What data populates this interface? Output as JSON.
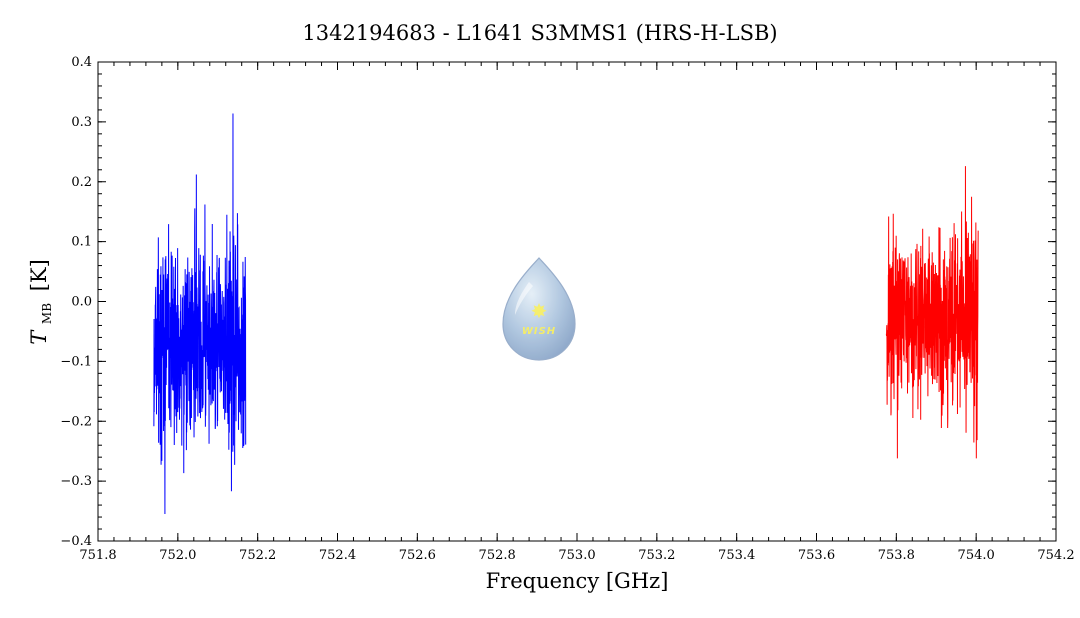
{
  "chart_data": {
    "type": "line",
    "title": "1342194683 - L1641 S3MMS1 (HRS-H-LSB)",
    "xlabel": "Frequency [GHz]",
    "ylabel_main": "T",
    "ylabel_sub": "MB",
    "ylabel_unit": "[K]",
    "xlim": [
      751.8,
      754.2
    ],
    "ylim": [
      -0.4,
      0.4
    ],
    "x_ticks": [
      751.8,
      752.0,
      752.2,
      752.4,
      752.6,
      752.8,
      753.0,
      753.2,
      753.4,
      753.6,
      753.8,
      754.0,
      754.2
    ],
    "x_tick_labels": [
      "751.8",
      "752.0",
      "752.2",
      "752.4",
      "752.6",
      "752.8",
      "753.0",
      "753.2",
      "753.4",
      "753.6",
      "753.8",
      "754.0",
      "754.2"
    ],
    "y_ticks": [
      -0.4,
      -0.3,
      -0.2,
      -0.1,
      0.0,
      0.1,
      0.2,
      0.3,
      0.4
    ],
    "y_tick_labels": [
      "-0.4",
      "-0.3",
      "-0.2",
      "-0.1",
      "0.0",
      "0.1",
      "0.2",
      "0.3",
      "0.4"
    ],
    "grid": false,
    "series": [
      {
        "color": "#0000ff",
        "x_range": [
          751.94,
          752.17
        ],
        "mean": -0.07,
        "noise_sigma": 0.085,
        "min": -0.355,
        "max": 0.314,
        "points": 600,
        "seed": 13
      },
      {
        "color": "#ff0000",
        "x_range": [
          753.775,
          754.005
        ],
        "mean": -0.03,
        "noise_sigma": 0.075,
        "min": -0.262,
        "max": 0.226,
        "points": 600,
        "seed": 71
      }
    ]
  },
  "logo": {
    "text": "WISH"
  }
}
